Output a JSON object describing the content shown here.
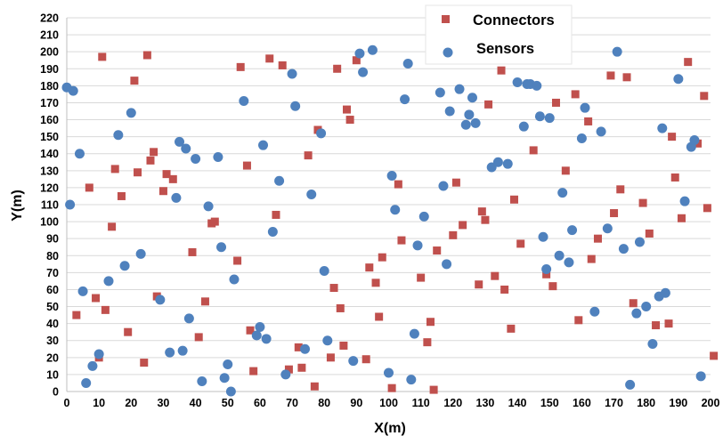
{
  "chart_data": {
    "type": "scatter",
    "xlabel": "X(m)",
    "ylabel": "Y(m)",
    "xlim": [
      0,
      200
    ],
    "ylim": [
      0,
      220
    ],
    "xticks": [
      0,
      10,
      20,
      30,
      40,
      50,
      60,
      70,
      80,
      90,
      100,
      110,
      120,
      130,
      140,
      150,
      160,
      170,
      180,
      190,
      200
    ],
    "yticks": [
      0,
      10,
      20,
      30,
      40,
      50,
      60,
      70,
      80,
      90,
      100,
      110,
      120,
      130,
      140,
      150,
      160,
      170,
      180,
      190,
      200,
      210,
      220
    ],
    "grid": "horizontal",
    "legend_position": "top-right",
    "series": [
      {
        "name": "Connectors",
        "marker": "square",
        "color": "#c0504d",
        "points": [
          [
            3,
            45
          ],
          [
            7,
            120
          ],
          [
            9,
            55
          ],
          [
            10,
            20
          ],
          [
            11,
            197
          ],
          [
            12,
            48
          ],
          [
            14,
            97
          ],
          [
            15,
            131
          ],
          [
            17,
            115
          ],
          [
            19,
            35
          ],
          [
            21,
            183
          ],
          [
            22,
            129
          ],
          [
            24,
            17
          ],
          [
            25,
            198
          ],
          [
            26,
            136
          ],
          [
            27,
            141
          ],
          [
            28,
            56
          ],
          [
            30,
            118
          ],
          [
            31,
            128
          ],
          [
            33,
            125
          ],
          [
            39,
            82
          ],
          [
            41,
            32
          ],
          [
            43,
            53
          ],
          [
            45,
            99
          ],
          [
            46,
            100
          ],
          [
            53,
            77
          ],
          [
            54,
            191
          ],
          [
            56,
            133
          ],
          [
            57,
            36
          ],
          [
            58,
            12
          ],
          [
            63,
            196
          ],
          [
            65,
            104
          ],
          [
            67,
            192
          ],
          [
            69,
            13
          ],
          [
            72,
            26
          ],
          [
            73,
            14
          ],
          [
            75,
            139
          ],
          [
            77,
            3
          ],
          [
            78,
            154
          ],
          [
            82,
            20
          ],
          [
            83,
            61
          ],
          [
            84,
            190
          ],
          [
            85,
            49
          ],
          [
            86,
            27
          ],
          [
            87,
            166
          ],
          [
            88,
            160
          ],
          [
            90,
            195
          ],
          [
            93,
            19
          ],
          [
            94,
            73
          ],
          [
            96,
            64
          ],
          [
            97,
            44
          ],
          [
            98,
            79
          ],
          [
            101,
            2
          ],
          [
            103,
            122
          ],
          [
            104,
            89
          ],
          [
            110,
            67
          ],
          [
            112,
            29
          ],
          [
            113,
            41
          ],
          [
            114,
            1
          ],
          [
            115,
            83
          ],
          [
            120,
            92
          ],
          [
            121,
            123
          ],
          [
            123,
            98
          ],
          [
            128,
            63
          ],
          [
            129,
            106
          ],
          [
            130,
            101
          ],
          [
            131,
            169
          ],
          [
            133,
            68
          ],
          [
            135,
            189
          ],
          [
            136,
            60
          ],
          [
            138,
            37
          ],
          [
            139,
            113
          ],
          [
            141,
            87
          ],
          [
            145,
            142
          ],
          [
            149,
            69
          ],
          [
            151,
            62
          ],
          [
            152,
            170
          ],
          [
            155,
            130
          ],
          [
            158,
            175
          ],
          [
            159,
            42
          ],
          [
            162,
            159
          ],
          [
            163,
            78
          ],
          [
            165,
            90
          ],
          [
            169,
            186
          ],
          [
            170,
            105
          ],
          [
            172,
            119
          ],
          [
            174,
            185
          ],
          [
            176,
            52
          ],
          [
            179,
            111
          ],
          [
            181,
            93
          ],
          [
            183,
            39
          ],
          [
            187,
            40
          ],
          [
            188,
            150
          ],
          [
            189,
            126
          ],
          [
            191,
            102
          ],
          [
            193,
            194
          ],
          [
            196,
            146
          ],
          [
            198,
            174
          ],
          [
            199,
            108
          ],
          [
            201,
            21
          ]
        ]
      },
      {
        "name": "Sensors",
        "marker": "circle",
        "color": "#4f81bd",
        "points": [
          [
            0,
            179
          ],
          [
            1,
            110
          ],
          [
            2,
            177
          ],
          [
            4,
            140
          ],
          [
            5,
            59
          ],
          [
            6,
            5
          ],
          [
            8,
            15
          ],
          [
            10,
            22
          ],
          [
            13,
            65
          ],
          [
            16,
            151
          ],
          [
            18,
            74
          ],
          [
            20,
            164
          ],
          [
            23,
            81
          ],
          [
            29,
            54
          ],
          [
            32,
            23
          ],
          [
            34,
            114
          ],
          [
            35,
            147
          ],
          [
            36,
            24
          ],
          [
            37,
            143
          ],
          [
            38,
            43
          ],
          [
            40,
            137
          ],
          [
            42,
            6
          ],
          [
            44,
            109
          ],
          [
            47,
            138
          ],
          [
            48,
            85
          ],
          [
            49,
            8
          ],
          [
            50,
            16
          ],
          [
            51,
            0
          ],
          [
            52,
            66
          ],
          [
            55,
            171
          ],
          [
            59,
            33
          ],
          [
            60,
            38
          ],
          [
            61,
            145
          ],
          [
            62,
            31
          ],
          [
            64,
            94
          ],
          [
            66,
            124
          ],
          [
            68,
            10
          ],
          [
            70,
            187
          ],
          [
            71,
            168
          ],
          [
            74,
            25
          ],
          [
            76,
            116
          ],
          [
            79,
            152
          ],
          [
            80,
            71
          ],
          [
            81,
            30
          ],
          [
            89,
            18
          ],
          [
            91,
            199
          ],
          [
            92,
            188
          ],
          [
            95,
            201
          ],
          [
            100,
            11
          ],
          [
            101,
            127
          ],
          [
            102,
            107
          ],
          [
            105,
            172
          ],
          [
            106,
            193
          ],
          [
            107,
            7
          ],
          [
            108,
            34
          ],
          [
            109,
            86
          ],
          [
            111,
            103
          ],
          [
            116,
            176
          ],
          [
            117,
            121
          ],
          [
            118,
            75
          ],
          [
            119,
            165
          ],
          [
            122,
            178
          ],
          [
            124,
            157
          ],
          [
            125,
            163
          ],
          [
            126,
            173
          ],
          [
            127,
            158
          ],
          [
            132,
            132
          ],
          [
            134,
            135
          ],
          [
            137,
            134
          ],
          [
            140,
            182
          ],
          [
            142,
            156
          ],
          [
            143,
            181
          ],
          [
            144,
            181
          ],
          [
            146,
            180
          ],
          [
            147,
            162
          ],
          [
            148,
            91
          ],
          [
            149,
            72
          ],
          [
            150,
            161
          ],
          [
            153,
            80
          ],
          [
            154,
            117
          ],
          [
            156,
            76
          ],
          [
            157,
            95
          ],
          [
            160,
            149
          ],
          [
            161,
            167
          ],
          [
            164,
            47
          ],
          [
            166,
            153
          ],
          [
            168,
            96
          ],
          [
            171,
            200
          ],
          [
            173,
            84
          ],
          [
            175,
            4
          ],
          [
            177,
            46
          ],
          [
            178,
            88
          ],
          [
            180,
            50
          ],
          [
            182,
            28
          ],
          [
            184,
            56
          ],
          [
            185,
            155
          ],
          [
            186,
            58
          ],
          [
            190,
            184
          ],
          [
            192,
            112
          ],
          [
            194,
            144
          ],
          [
            195,
            148
          ],
          [
            197,
            9
          ]
        ]
      }
    ]
  }
}
